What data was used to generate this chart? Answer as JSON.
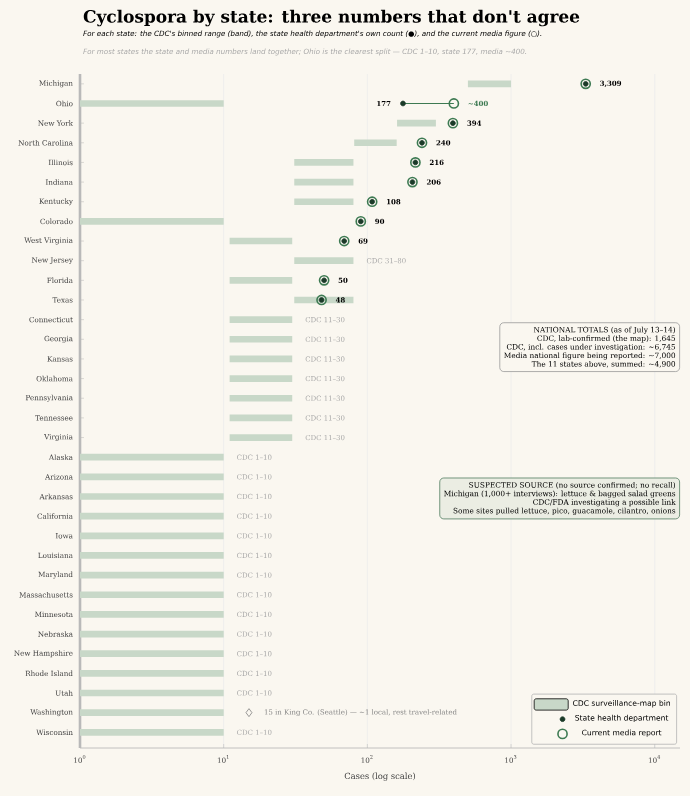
{
  "chart_data": {
    "type": "bar",
    "orientation": "horizontal",
    "title": "Cyclospora by state: three numbers that don't agree",
    "subtitle": "For each state: the CDC's binned range (band), the state health department's own count (●), and the current media figure (○).",
    "xlabel": "Cases (log scale)",
    "categories": [
      "Michigan",
      "Ohio",
      "New York",
      "North Carolina",
      "Illinois",
      "Indiana",
      "Kentucky",
      "Colorado",
      "West Virginia",
      "New Jersey",
      "Florida",
      "Texas",
      "Connecticut",
      "Georgia",
      "Kansas",
      "Oklahoma",
      "Pennsylvania",
      "Tennessee",
      "Virginia",
      "Alaska",
      "Arizona",
      "Arkansas",
      "California",
      "Iowa",
      "Louisiana",
      "Maryland",
      "Massachusetts",
      "Minnesota",
      "Nebraska",
      "New Hampshire",
      "Rhode Island",
      "Utah",
      "Washington",
      "Wisconsin"
    ],
    "series": [
      {
        "name": "CDC surveillance-map bin",
        "color": "#c8d8c8",
        "base": [
          501,
          1,
          161,
          81,
          31,
          31,
          31,
          1,
          11,
          31,
          11,
          31,
          11,
          11,
          11,
          11,
          11,
          11,
          11,
          1,
          1,
          1,
          1,
          1,
          1,
          1,
          1,
          1,
          1,
          1,
          1,
          1,
          1,
          1
        ],
        "values": [
          499,
          9,
          139,
          79,
          49,
          49,
          49,
          9,
          19,
          49,
          19,
          49,
          19,
          19,
          19,
          19,
          19,
          19,
          19,
          9,
          9,
          9,
          9,
          9,
          9,
          9,
          9,
          9,
          9,
          9,
          9,
          9,
          9,
          9
        ],
        "value_labels": [
          null,
          null,
          null,
          null,
          null,
          null,
          null,
          null,
          null,
          "CDC 31–80",
          null,
          null,
          "CDC 11–30",
          "CDC 11–30",
          "CDC 11–30",
          "CDC 11–30",
          "CDC 11–30",
          "CDC 11–30",
          "CDC 11–30",
          "CDC 1–10",
          "CDC 1–10",
          "CDC 1–10",
          "CDC 1–10",
          "CDC 1–10",
          "CDC 1–10",
          "CDC 1–10",
          "CDC 1–10",
          "CDC 1–10",
          "CDC 1–10",
          "CDC 1–10",
          "CDC 1–10",
          "CDC 1–10",
          null,
          "CDC 1–10"
        ]
      },
      {
        "name": "State health department",
        "type": "scatter",
        "color": "#1b3a28",
        "values": [
          3309,
          177,
          394,
          240,
          216,
          206,
          108,
          90,
          69,
          null,
          50,
          48,
          null,
          null,
          null,
          null,
          null,
          null,
          null,
          null,
          null,
          null,
          null,
          null,
          null,
          null,
          null,
          null,
          null,
          null,
          null,
          null,
          null,
          null
        ],
        "value_labels": [
          "3,309",
          "177",
          "394",
          "240",
          "216",
          "206",
          "108",
          "90",
          "69",
          null,
          "50",
          "48",
          null,
          null,
          null,
          null,
          null,
          null,
          null,
          null,
          null,
          null,
          null,
          null,
          null,
          null,
          null,
          null,
          null,
          null,
          null,
          null,
          null,
          null
        ]
      },
      {
        "name": "Current media report",
        "type": "scatter",
        "color": "#3d7a52",
        "values": [
          3309,
          400,
          394,
          240,
          216,
          206,
          108,
          90,
          69,
          null,
          50,
          48,
          null,
          null,
          null,
          null,
          null,
          null,
          null,
          null,
          null,
          null,
          null,
          null,
          null,
          null,
          null,
          null,
          null,
          null,
          null,
          null,
          null,
          null
        ],
        "value_labels": [
          null,
          "~400",
          null,
          null,
          null,
          null,
          null,
          null,
          null,
          null,
          null,
          null,
          null,
          null,
          null,
          null,
          null,
          null,
          null,
          null,
          null,
          null,
          null,
          null,
          null,
          null,
          null,
          null,
          null,
          null,
          null,
          null,
          null,
          null
        ]
      }
    ],
    "xlim": [
      1,
      15000
    ],
    "xticks": [
      {
        "value": 1,
        "label": "10$^{0}$"
      },
      {
        "value": 10,
        "label": "10$^{1}$"
      },
      {
        "value": 100,
        "label": "10$^{2}$"
      },
      {
        "value": 1000,
        "label": "10$^{3}$"
      },
      {
        "value": 10000,
        "label": "10$^{4}$"
      }
    ],
    "log": "x",
    "grid": "x",
    "legend": "bottom right",
    "marker": "circle",
    "annotations": [
      "For most states the state and media numbers land together; Ohio is the clearest split — CDC 1–10, state 177, media ~400.",
      "NATIONAL TOTALS (as of July 13–14)",
      "CDC, lab-confirmed (the map): 1,645",
      "CDC, incl. cases under investigation: ~6,745",
      "Media national figure being reported: ~7,000",
      "The 11 states above, summed: ~4,900",
      "SUSPECTED SOURCE (no source confirmed; no recall)",
      "Michigan (1,000+ interviews): lettuce & bagged salad greens",
      "CDC/FDA investigating a possible link",
      "Some sites pulled lettuce, pico, guacamole, cilantro, onions",
      {
        "text": "15 in King Co. (Seattle) — ~1 local, rest travel-related",
        "x": 15,
        "y": "Washington"
      }
    ]
  }
}
